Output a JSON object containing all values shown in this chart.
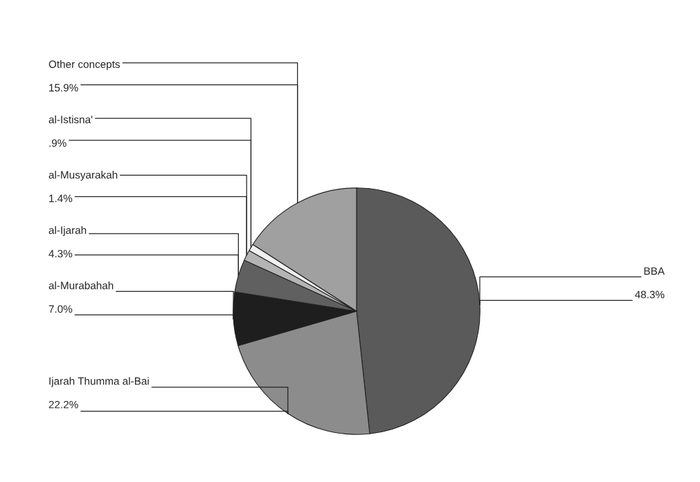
{
  "chart_data": {
    "type": "pie",
    "categories": [
      "BBA",
      "Ijarah Thumma al-Bai",
      "al-Murabahah",
      "al-Ijarah",
      "al-Musyarakah",
      "al-Istisna'",
      "Other concepts"
    ],
    "values": [
      48.3,
      22.2,
      7.0,
      4.3,
      1.4,
      0.9,
      15.9
    ],
    "value_labels": [
      "48.3%",
      "22.2%",
      "7.0%",
      "4.3%",
      "1.4%",
      ".9%",
      "15.9%"
    ],
    "colors": [
      "#5a5a5a",
      "#8c8c8c",
      "#1e1e1e",
      "#606060",
      "#b4b4b4",
      "#f0f0f0",
      "#a0a0a0"
    ]
  }
}
